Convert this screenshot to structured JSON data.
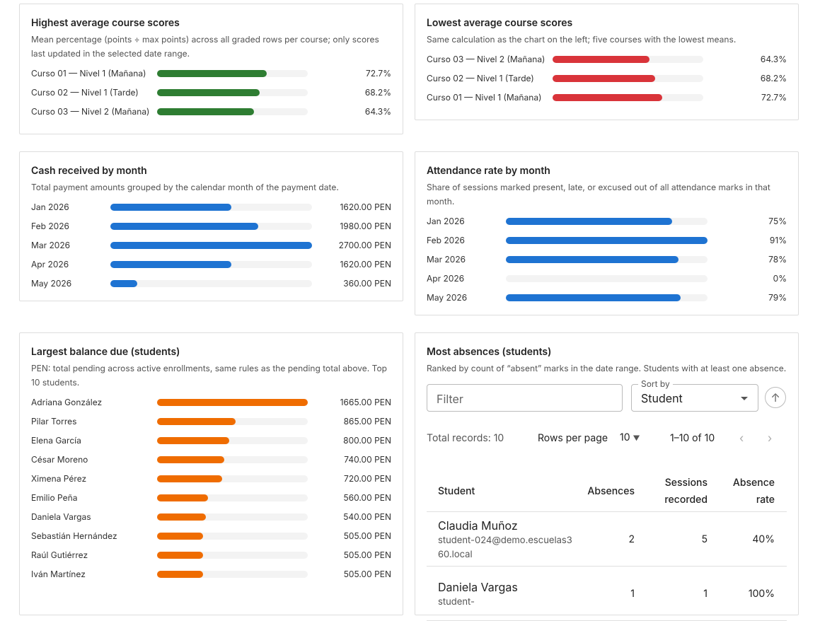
{
  "panels": [
    {
      "title": "Highest average course scores",
      "subtitle": "Mean percentage (points ÷ max points) across all graded rows per course; only scores last updated in the selected date range.",
      "color": "#2e7d32",
      "xlim": [
        0,
        100
      ],
      "categories": [
        "Curso 01 — Nivel 1 (Mañana)",
        "Curso 02 — Nivel 1 (Tarde)",
        "Curso 03 — Nivel 2 (Mañana)"
      ],
      "values": [
        72.7,
        68.2,
        64.3
      ],
      "value_labels": [
        "72.7%",
        "68.2%",
        "64.3%"
      ]
    },
    {
      "title": "Lowest average course scores",
      "subtitle": "Same calculation as the chart on the left; five courses with the lowest means.",
      "color": "#d9343a",
      "xlim": [
        0,
        100
      ],
      "categories": [
        "Curso 03 — Nivel 2 (Mañana)",
        "Curso 02 — Nivel 1 (Tarde)",
        "Curso 01 — Nivel 1 (Mañana)"
      ],
      "values": [
        64.3,
        68.2,
        72.7
      ],
      "value_labels": [
        "64.3%",
        "68.2%",
        "72.7%"
      ]
    },
    {
      "title": "Cash received by month",
      "subtitle": "Total payment amounts grouped by the calendar month of the payment date.",
      "color": "#1e73d2",
      "categories": [
        "Jan 2026",
        "Feb 2026",
        "Mar 2026",
        "Apr 2026",
        "May 2026"
      ],
      "values": [
        1620,
        1980,
        2700,
        1620,
        360
      ],
      "value_labels": [
        "1620.00 PEN",
        "1980.00 PEN",
        "2700.00 PEN",
        "1620.00 PEN",
        "360.00 PEN"
      ]
    },
    {
      "title": "Attendance rate by month",
      "subtitle": "Share of sessions marked present, late, or excused out of all attendance marks in that month.",
      "color": "#1e73d2",
      "categories": [
        "Jan 2026",
        "Feb 2026",
        "Mar 2026",
        "Apr 2026",
        "May 2026"
      ],
      "values": [
        75,
        91,
        78,
        0,
        79
      ],
      "value_labels": [
        "75%",
        "91%",
        "78%",
        "0%",
        "79%"
      ]
    },
    {
      "title": "Largest balance due (students)",
      "subtitle": "PEN: total pending across active enrollments, same rules as the pending total above. Top 10 students.",
      "color": "#ef6c00",
      "categories": [
        "Adriana González",
        "Pilar Torres",
        "Elena García",
        "César Moreno",
        "Ximena Pérez",
        "Emilio Peña",
        "Daniela Vargas",
        "Sebastián Hernández",
        "Raúl Gutiérrez",
        "Iván Martínez"
      ],
      "values": [
        1665,
        865,
        800,
        740,
        720,
        560,
        540,
        505,
        505,
        505
      ],
      "value_labels": [
        "1665.00 PEN",
        "865.00 PEN",
        "800.00 PEN",
        "740.00 PEN",
        "720.00 PEN",
        "560.00 PEN",
        "540.00 PEN",
        "505.00 PEN",
        "505.00 PEN",
        "505.00 PEN"
      ]
    }
  ],
  "absences_table": {
    "title": "Most absences (students)",
    "subtitle": "Ranked by count of “absent” marks in the date range. Students with at least one absence.",
    "filter_placeholder": "Filter",
    "sort_label": "Sort by",
    "sort_value": "Student",
    "total": "Total records: 10",
    "rows_per_page_label": "Rows per page",
    "rows_per_page": "10",
    "range": "1–10 of 10",
    "columns": [
      "Student",
      "Absences",
      "Sessions recorded",
      "Absence rate"
    ],
    "rows": [
      [
        "Claudia Muñoz",
        "student-024@demo.escuelas360.local",
        "2",
        "5",
        "40%"
      ],
      [
        "Daniela Vargas",
        "student-",
        "1",
        "1",
        "100%"
      ]
    ]
  }
}
